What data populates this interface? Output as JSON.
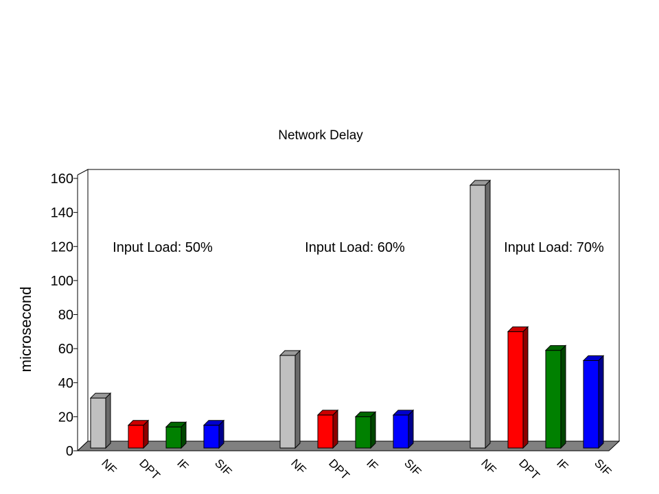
{
  "chart_data": {
    "type": "bar",
    "title": "Network Delay",
    "ylabel": "microsecond",
    "ylim": [
      0,
      165
    ],
    "yticks": [
      0,
      20,
      40,
      60,
      80,
      100,
      120,
      140,
      160
    ],
    "legend": "none",
    "groups": [
      {
        "label": "Input Load: 50%",
        "bars": [
          {
            "category": "NF",
            "value": 31,
            "color": "#c0c0c0"
          },
          {
            "category": "DPT",
            "value": 15,
            "color": "#ff0000"
          },
          {
            "category": "IF",
            "value": 14,
            "color": "#008000"
          },
          {
            "category": "SIF",
            "value": 15,
            "color": "#0000ff"
          }
        ]
      },
      {
        "label": "Input Load: 60%",
        "bars": [
          {
            "category": "NF",
            "value": 56,
            "color": "#c0c0c0"
          },
          {
            "category": "DPT",
            "value": 21,
            "color": "#ff0000"
          },
          {
            "category": "IF",
            "value": 20,
            "color": "#008000"
          },
          {
            "category": "SIF",
            "value": 21,
            "color": "#0000ff"
          }
        ]
      },
      {
        "label": "Input Load: 70%",
        "bars": [
          {
            "category": "NF",
            "value": 156,
            "color": "#c0c0c0"
          },
          {
            "category": "DPT",
            "value": 70,
            "color": "#ff0000"
          },
          {
            "category": "IF",
            "value": 59,
            "color": "#008000"
          },
          {
            "category": "SIF",
            "value": 53,
            "color": "#0000ff"
          }
        ]
      }
    ]
  }
}
